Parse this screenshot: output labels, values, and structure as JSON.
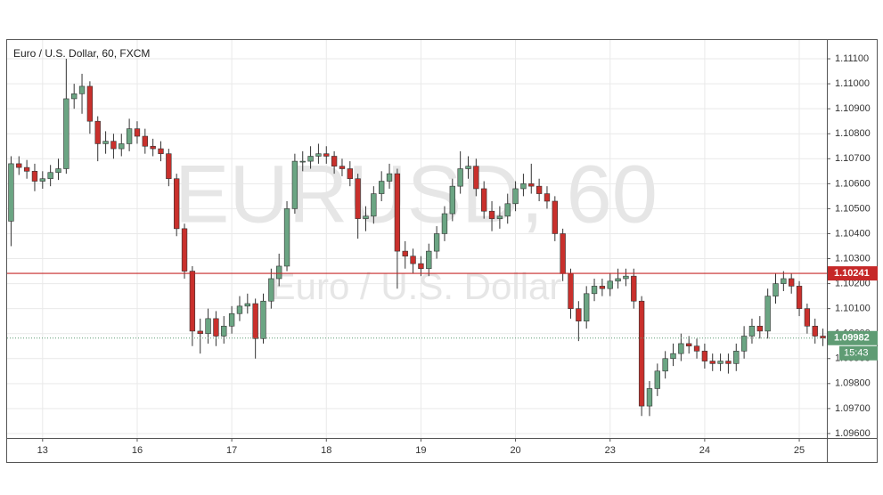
{
  "chart_data": {
    "type": "candlestick",
    "title": "Euro / U.S. Dollar, 60, FXCM",
    "watermark": "EURUSD, 60",
    "watermark_subtitle": "Euro / U.S. Dollar",
    "up_color": "#6ba583",
    "down_color": "#c9302c",
    "grid": true,
    "xlim": [
      0,
      208
    ],
    "xticks": [
      {
        "value": 9,
        "label": "13"
      },
      {
        "value": 33,
        "label": "16"
      },
      {
        "value": 57,
        "label": "17"
      },
      {
        "value": 81,
        "label": "18"
      },
      {
        "value": 105,
        "label": "19"
      },
      {
        "value": 129,
        "label": "20"
      },
      {
        "value": 153,
        "label": "23"
      },
      {
        "value": 177,
        "label": "24"
      },
      {
        "value": 201,
        "label": "25"
      }
    ],
    "ylim": [
      1.09582,
      1.11175
    ],
    "yticks": [
      {
        "value": 1.096,
        "label": "1.09600"
      },
      {
        "value": 1.097,
        "label": "1.09700"
      },
      {
        "value": 1.098,
        "label": "1.09800"
      },
      {
        "value": 1.099,
        "label": "1.09900"
      },
      {
        "value": 1.1,
        "label": "1.10000"
      },
      {
        "value": 1.101,
        "label": "1.10100"
      },
      {
        "value": 1.102,
        "label": "1.10200"
      },
      {
        "value": 1.103,
        "label": "1.10300"
      },
      {
        "value": 1.104,
        "label": "1.10400"
      },
      {
        "value": 1.105,
        "label": "1.10500"
      },
      {
        "value": 1.106,
        "label": "1.10600"
      },
      {
        "value": 1.107,
        "label": "1.10700"
      },
      {
        "value": 1.108,
        "label": "1.10800"
      },
      {
        "value": 1.109,
        "label": "1.10900"
      },
      {
        "value": 1.11,
        "label": "1.11000"
      },
      {
        "value": 1.111,
        "label": "1.11100"
      }
    ],
    "hline": {
      "value": 1.10241,
      "color": "#c62828"
    },
    "last_price": {
      "value": 1.09982,
      "countdown": "15:43",
      "color": "#5f9c74"
    },
    "x": [
      1,
      3,
      5,
      7,
      9,
      11,
      13,
      15,
      17,
      19,
      21,
      23,
      25,
      27,
      29,
      31,
      33,
      35,
      37,
      39,
      41,
      43,
      45,
      47,
      49,
      51,
      53,
      55,
      57,
      59,
      61,
      63,
      65,
      67,
      69,
      71,
      73,
      75,
      77,
      79,
      81,
      83,
      85,
      87,
      89,
      91,
      93,
      95,
      97,
      99,
      101,
      103,
      105,
      107,
      109,
      111,
      113,
      115,
      117,
      119,
      121,
      123,
      125,
      127,
      129,
      131,
      133,
      135,
      137,
      139,
      141,
      143,
      145,
      147,
      149,
      151,
      153,
      155,
      157,
      159,
      161,
      163,
      165,
      167,
      169,
      171,
      173,
      175,
      177,
      179,
      181,
      183,
      185,
      187,
      189,
      191,
      193,
      195,
      197,
      199,
      201,
      203,
      205,
      207
    ],
    "open": [
      1.1045,
      1.1068,
      1.10665,
      1.1065,
      1.1061,
      1.1062,
      1.10645,
      1.1066,
      1.1094,
      1.1096,
      1.1099,
      1.1085,
      1.1076,
      1.1077,
      1.1074,
      1.1076,
      1.1082,
      1.1079,
      1.1075,
      1.1074,
      1.1072,
      1.1062,
      1.1042,
      1.1025,
      1.1001,
      1.1,
      1.1006,
      1.0999,
      1.1003,
      1.1008,
      1.1011,
      1.1012,
      1.0998,
      1.1013,
      1.1022,
      1.1027,
      1.105,
      1.1069,
      1.1069,
      1.1071,
      1.1072,
      1.1071,
      1.1067,
      1.1066,
      1.1062,
      1.1046,
      1.1047,
      1.1056,
      1.1061,
      1.1064,
      1.1033,
      1.1031,
      1.1028,
      1.1026,
      1.1033,
      1.104,
      1.1048,
      1.1059,
      1.1066,
      1.1067,
      1.1058,
      1.1049,
      1.1046,
      1.1047,
      1.1052,
      1.1058,
      1.106,
      1.1059,
      1.1056,
      1.1053,
      1.104,
      1.1024,
      1.101,
      1.1005,
      1.1016,
      1.1019,
      1.1018,
      1.1021,
      1.1022,
      1.1023,
      1.1013,
      1.0971,
      1.0978,
      1.0985,
      1.099,
      1.0992,
      1.0996,
      1.0995,
      1.0993,
      1.0989,
      1.0988,
      1.0989,
      1.0988,
      1.0993,
      1.0999,
      1.1003,
      1.1001,
      1.1015,
      1.102,
      1.1022,
      1.1019,
      1.101,
      1.1003,
      1.0999
    ],
    "high": [
      1.1071,
      1.1071,
      1.10695,
      1.1068,
      1.1065,
      1.10675,
      1.107,
      1.111,
      1.11,
      1.1104,
      1.1101,
      1.1087,
      1.1081,
      1.108,
      1.108,
      1.1086,
      1.1085,
      1.1082,
      1.1078,
      1.1077,
      1.1074,
      1.1064,
      1.1044,
      1.1027,
      1.1006,
      1.101,
      1.1009,
      1.1007,
      1.1011,
      1.1015,
      1.1016,
      1.1014,
      1.1016,
      1.1026,
      1.1032,
      1.1053,
      1.1072,
      1.1073,
      1.1075,
      1.1076,
      1.1075,
      1.1073,
      1.107,
      1.1069,
      1.1064,
      1.1051,
      1.1059,
      1.1065,
      1.1068,
      1.1066,
      1.1037,
      1.1034,
      1.1031,
      1.1036,
      1.1043,
      1.1051,
      1.1062,
      1.1073,
      1.1071,
      1.107,
      1.1061,
      1.1053,
      1.1051,
      1.1056,
      1.1061,
      1.1064,
      1.1068,
      1.1062,
      1.1059,
      1.1055,
      1.1042,
      1.1026,
      1.1013,
      1.1019,
      1.1022,
      1.1022,
      1.1024,
      1.1026,
      1.1026,
      1.1026,
      1.1015,
      1.0981,
      1.0988,
      1.0993,
      1.0996,
      1.1,
      1.0999,
      1.0998,
      1.0996,
      1.0992,
      1.0992,
      1.0992,
      1.0996,
      1.1003,
      1.1006,
      1.1007,
      1.1018,
      1.1024,
      1.1025,
      1.1024,
      1.1021,
      1.1012,
      1.1006,
      1.1002
    ],
    "low": [
      1.1035,
      1.10635,
      1.1062,
      1.1057,
      1.1058,
      1.1059,
      1.10615,
      1.1064,
      1.109,
      1.1088,
      1.108,
      1.1069,
      1.1072,
      1.107,
      1.1071,
      1.1073,
      1.1076,
      1.1072,
      1.1071,
      1.1069,
      1.1059,
      1.1039,
      1.1022,
      1.0995,
      1.0992,
      1.0996,
      1.0995,
      1.0996,
      1.1,
      1.1005,
      1.1008,
      1.099,
      1.0996,
      1.101,
      1.1019,
      1.1025,
      1.1048,
      1.1065,
      1.1066,
      1.1068,
      1.1068,
      1.1064,
      1.1063,
      1.1059,
      1.1038,
      1.1041,
      1.1044,
      1.1053,
      1.1058,
      1.1018,
      1.1026,
      1.1024,
      1.1023,
      1.1023,
      1.103,
      1.1037,
      1.1045,
      1.1056,
      1.1062,
      1.1055,
      1.1046,
      1.1041,
      1.1042,
      1.1044,
      1.1049,
      1.1055,
      1.1056,
      1.1053,
      1.105,
      1.1037,
      1.1021,
      1.1006,
      1.0997,
      1.1002,
      1.1013,
      1.1015,
      1.1015,
      1.1018,
      1.1019,
      1.101,
      1.0967,
      1.0967,
      1.0975,
      1.0982,
      1.0987,
      1.0989,
      1.0992,
      1.099,
      1.0986,
      1.0985,
      1.0985,
      1.0984,
      1.0985,
      1.099,
      1.0996,
      1.0998,
      1.0998,
      1.1012,
      1.1017,
      1.1016,
      1.1007,
      1.1,
      1.0996,
      1.0995
    ],
    "close": [
      1.1068,
      1.10665,
      1.1065,
      1.1061,
      1.1062,
      1.10645,
      1.1066,
      1.1094,
      1.1096,
      1.1099,
      1.1085,
      1.1076,
      1.1077,
      1.1074,
      1.1076,
      1.1082,
      1.1079,
      1.1075,
      1.1074,
      1.1072,
      1.1062,
      1.1042,
      1.1025,
      1.1001,
      1.1,
      1.1006,
      1.0999,
      1.1003,
      1.1008,
      1.1011,
      1.1012,
      1.0998,
      1.1013,
      1.1022,
      1.1027,
      1.105,
      1.1069,
      1.1069,
      1.1071,
      1.1072,
      1.1071,
      1.1067,
      1.1066,
      1.1062,
      1.1046,
      1.1047,
      1.1056,
      1.1061,
      1.1064,
      1.1033,
      1.1031,
      1.1028,
      1.1026,
      1.1033,
      1.104,
      1.1048,
      1.1059,
      1.1066,
      1.1067,
      1.1058,
      1.1049,
      1.1046,
      1.1047,
      1.1052,
      1.1058,
      1.106,
      1.1059,
      1.1056,
      1.1053,
      1.104,
      1.1024,
      1.101,
      1.1005,
      1.1016,
      1.1019,
      1.1018,
      1.1021,
      1.1022,
      1.1023,
      1.1013,
      1.0971,
      1.0978,
      1.0985,
      1.099,
      1.0992,
      1.0996,
      1.0995,
      1.0993,
      1.0989,
      1.0988,
      1.0989,
      1.0988,
      1.0993,
      1.0999,
      1.1003,
      1.1001,
      1.1015,
      1.102,
      1.1022,
      1.1019,
      1.101,
      1.1003,
      1.0999,
      1.09982
    ]
  }
}
